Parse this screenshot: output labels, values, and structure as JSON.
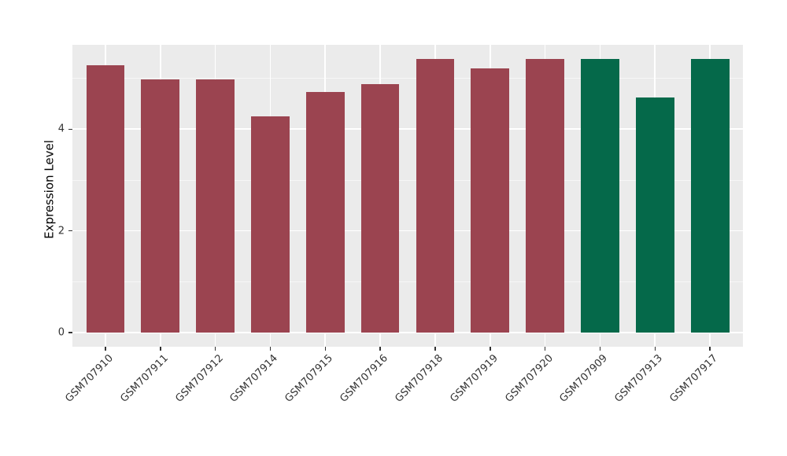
{
  "chart_data": {
    "type": "bar",
    "title": "",
    "xlabel": "",
    "ylabel": "Expression Level",
    "categories": [
      "GSM707910",
      "GSM707911",
      "GSM707912",
      "GSM707914",
      "GSM707915",
      "GSM707916",
      "GSM707918",
      "GSM707919",
      "GSM707920",
      "GSM707909",
      "GSM707913",
      "GSM707917"
    ],
    "values": [
      5.26,
      4.98,
      4.98,
      4.25,
      4.73,
      4.88,
      5.39,
      5.19,
      5.39,
      5.39,
      4.62,
      5.39
    ],
    "bar_colors": [
      "#9B4450",
      "#9B4450",
      "#9B4450",
      "#9B4450",
      "#9B4450",
      "#9B4450",
      "#9B4450",
      "#9B4450",
      "#9B4450",
      "#05694A",
      "#05694A",
      "#05694A"
    ],
    "yticks": [
      0,
      2,
      4
    ],
    "yticks_minor": [
      1,
      3,
      5
    ],
    "ylim": [
      -0.28,
      5.66
    ],
    "legend": "none",
    "grid": "major+minor",
    "panel_bg": "#EBEBEB",
    "grid_major_color": "#FFFFFF",
    "grid_minor_color": "#F7F7F7",
    "axis_text_color": "#333333",
    "tick_color": "#333333"
  }
}
